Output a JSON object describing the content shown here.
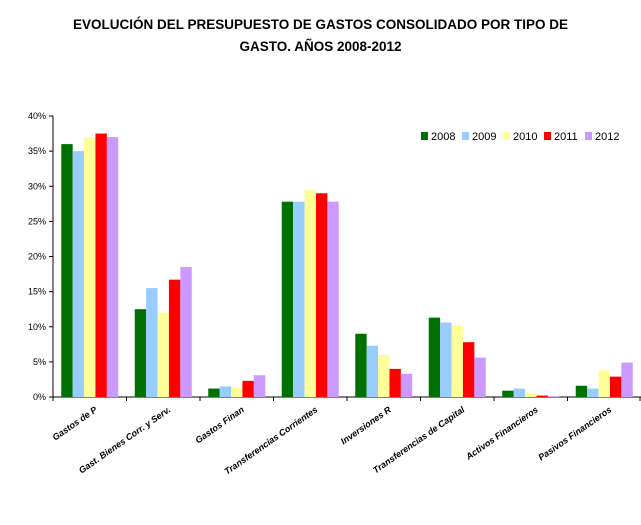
{
  "chart_data": {
    "type": "bar",
    "title_line1": "EVOLUCIÓN DEL PRESUPUESTO DE GASTOS CONSOLIDADO POR TIPO DE",
    "title_line2": "GASTO.  AÑOS  2008-2012",
    "categories": [
      "Gastos de P",
      "Gast. Bienes Corr. y Serv.",
      "Gastos Finan",
      "Transferencias Corrientes",
      "Inversiones R",
      "Transferencias de Capital",
      "Activos Financieros",
      "Pasivos Financieros"
    ],
    "series": [
      {
        "name": "2008",
        "color": "#007000",
        "values": [
          36.0,
          12.5,
          1.2,
          27.8,
          9.0,
          11.3,
          0.9,
          1.6
        ]
      },
      {
        "name": "2009",
        "color": "#99ccff",
        "values": [
          35.0,
          15.5,
          1.5,
          27.8,
          7.3,
          10.6,
          1.2,
          1.2
        ]
      },
      {
        "name": "2010",
        "color": "#ffff99",
        "values": [
          37.0,
          12.0,
          1.4,
          29.5,
          6.0,
          10.2,
          0.6,
          3.8
        ]
      },
      {
        "name": "2011",
        "color": "#ff0000",
        "values": [
          37.5,
          16.7,
          2.3,
          29.0,
          4.0,
          7.8,
          0.2,
          2.9
        ]
      },
      {
        "name": "2012",
        "color": "#cc99ff",
        "values": [
          37.0,
          18.5,
          3.1,
          27.8,
          3.3,
          5.6,
          0.1,
          4.9
        ]
      }
    ],
    "yticks": [
      "0%",
      "5%",
      "10%",
      "15%",
      "20%",
      "25%",
      "30%",
      "35%",
      "40%"
    ],
    "ylim": [
      0,
      40
    ],
    "legend_position": "top-right",
    "grid": false
  }
}
